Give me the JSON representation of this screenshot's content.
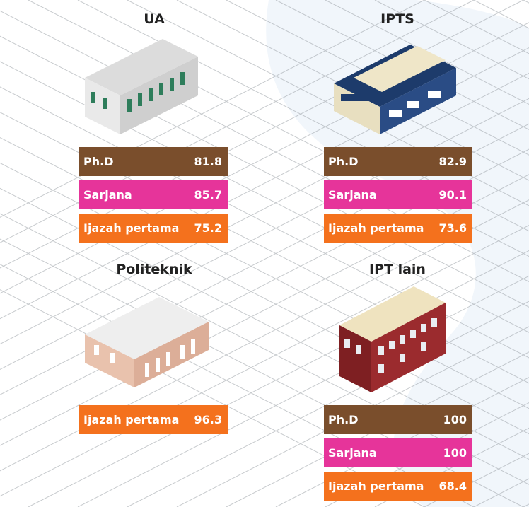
{
  "panels": [
    {
      "title": "UA",
      "rows": [
        {
          "label": "Ph.D",
          "value": 81.8,
          "color": "#7a4e2c"
        },
        {
          "label": "Sarjana",
          "value": 85.7,
          "color": "#e6349a"
        },
        {
          "label": "Ijazah pertama",
          "value": 75.2,
          "color": "#f4711d"
        }
      ]
    },
    {
      "title": "IPTS",
      "rows": [
        {
          "label": "Ph.D",
          "value": 82.9,
          "color": "#7a4e2c"
        },
        {
          "label": "Sarjana",
          "value": 90.1,
          "color": "#e6349a"
        },
        {
          "label": "Ijazah pertama",
          "value": 73.6,
          "color": "#f4711d"
        }
      ]
    },
    {
      "title": "Politeknik",
      "rows": [
        {
          "label": "Ijazah pertama",
          "value": 96.3,
          "color": "#f4711d"
        }
      ]
    },
    {
      "title": "IPT lain",
      "rows": [
        {
          "label": "Ph.D",
          "value": 100,
          "color": "#7a4e2c"
        },
        {
          "label": "Sarjana",
          "value": 100,
          "color": "#e6349a"
        },
        {
          "label": "Ijazah pertama",
          "value": 68.4,
          "color": "#f4711d"
        }
      ]
    }
  ]
}
